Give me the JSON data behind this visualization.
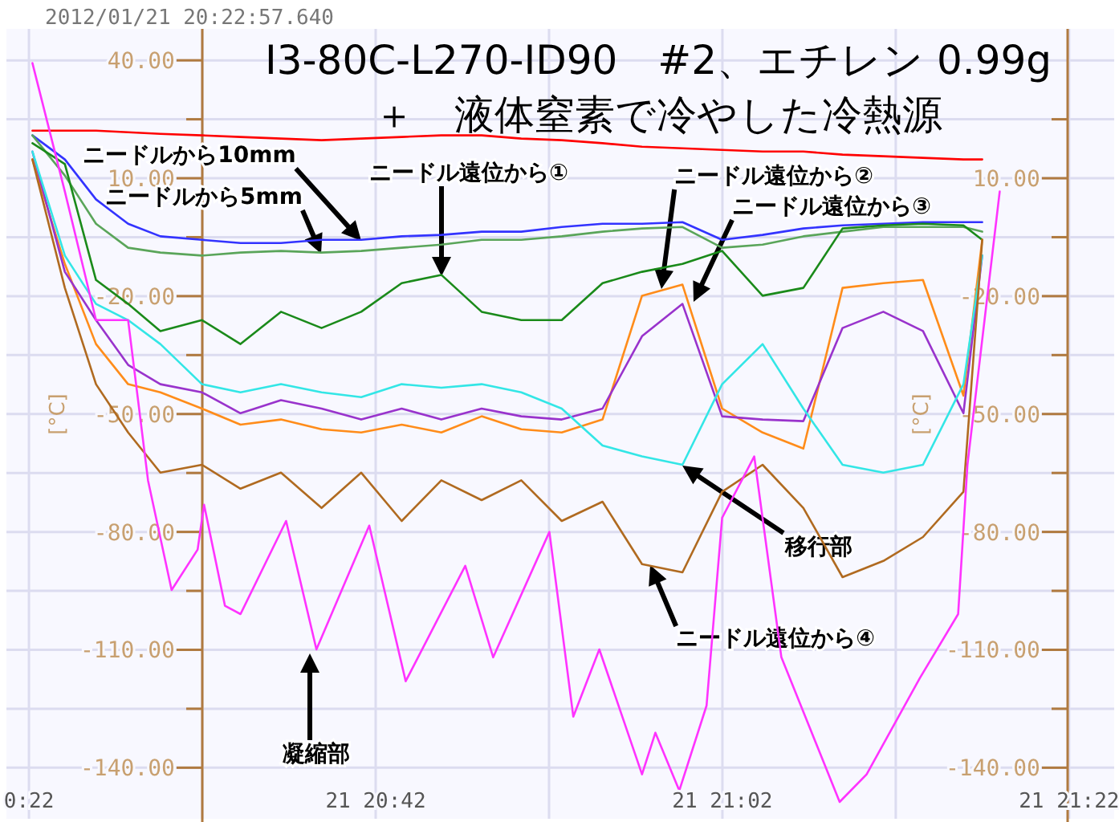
{
  "chart_data": {
    "type": "line",
    "title": "I3-80C-L270-ID90　#2、エチレン 0.99g",
    "subtitle": "＋　液体窒素で冷やした冷熱源",
    "ylabel": "[°C]",
    "y2label": "[°C]",
    "grid": true,
    "xlim": [
      "2012-01-21T20:20:42",
      "2012-01-21T21:24:36"
    ],
    "xticks": [
      {
        "value": "2012-01-21T20:22",
        "label": "0:22"
      },
      {
        "value": "2012-01-21T20:32",
        "label": null
      },
      {
        "value": "2012-01-21T20:42",
        "label": "21 20:42"
      },
      {
        "value": "2012-01-21T20:52",
        "label": null
      },
      {
        "value": "2012-01-21T21:02",
        "label": "21 21:02"
      },
      {
        "value": "2012-01-21T21:12",
        "label": null
      },
      {
        "value": "2012-01-21T21:22",
        "label": "21 21:22"
      }
    ],
    "ylim": [
      -153,
      48
    ],
    "yticks": [
      {
        "value": 40,
        "label": "40.00"
      },
      {
        "value": 25,
        "label": null
      },
      {
        "value": 10,
        "label": "10.00"
      },
      {
        "value": -5,
        "label": null
      },
      {
        "value": -20,
        "label": "-20.00"
      },
      {
        "value": -35,
        "label": null
      },
      {
        "value": -50,
        "label": "-50.00"
      },
      {
        "value": -65,
        "label": null
      },
      {
        "value": -80,
        "label": "-80.00"
      },
      {
        "value": -95,
        "label": null
      },
      {
        "value": -110,
        "label": "-110.00"
      },
      {
        "value": -125,
        "label": null
      },
      {
        "value": -140,
        "label": "-140.00"
      }
    ],
    "y2lim": [
      -153,
      48
    ],
    "y2ticks": [
      {
        "value": 25,
        "label": null
      },
      {
        "value": 10,
        "label": "10.00"
      },
      {
        "value": -5,
        "label": null
      },
      {
        "value": -20,
        "label": "-20.00"
      },
      {
        "value": -35,
        "label": null
      },
      {
        "value": -50,
        "label": "-50.00"
      },
      {
        "value": -65,
        "label": null
      },
      {
        "value": -80,
        "label": "-80.00"
      },
      {
        "value": -95,
        "label": null
      },
      {
        "value": -110,
        "label": "-110.00"
      },
      {
        "value": -125,
        "label": null
      },
      {
        "value": -140,
        "label": "-140.00"
      }
    ],
    "x": [
      "2012-01-21T20:22:12",
      "2012-01-21T20:24:04",
      "2012-01-21T20:25:52",
      "2012-01-21T20:27:43",
      "2012-01-21T20:29:35",
      "2012-01-21T20:31:59",
      "2012-01-21T20:34:12",
      "2012-01-21T20:36:32",
      "2012-01-21T20:38:53",
      "2012-01-21T20:41:10",
      "2012-01-21T20:43:30",
      "2012-01-21T20:45:47",
      "2012-01-21T20:48:07",
      "2012-01-21T20:50:24",
      "2012-01-21T20:52:44",
      "2012-01-21T20:55:05",
      "2012-01-21T20:57:22",
      "2012-01-21T20:59:42",
      "2012-01-21T21:01:59",
      "2012-01-21T21:04:19",
      "2012-01-21T21:06:40",
      "2012-01-21T21:08:56",
      "2012-01-21T21:11:17",
      "2012-01-21T21:13:34",
      "2012-01-21T21:15:54",
      "2012-01-21T21:16:59"
    ],
    "series": [
      {
        "color": "#ff0000",
        "values": [
          22.1,
          22.1,
          22.1,
          21.7,
          21.3,
          20.9,
          20.5,
          20.1,
          19.7,
          20.1,
          20.5,
          20.9,
          20.9,
          20.1,
          19.7,
          18.9,
          18.0,
          17.6,
          17.2,
          16.8,
          16.8,
          16.0,
          15.6,
          15.2,
          14.8,
          14.8
        ]
      },
      {
        "color": "#3333ff",
        "values": [
          20.9,
          14.8,
          4.6,
          -1.6,
          -4.8,
          -5.7,
          -6.5,
          -6.5,
          -5.7,
          -5.7,
          -4.8,
          -4.4,
          -3.6,
          -3.6,
          -2.4,
          -1.6,
          -1.6,
          -1.2,
          -5.7,
          -4.4,
          -2.8,
          -2.0,
          -1.6,
          -1.2,
          -1.2,
          -1.2
        ]
      },
      {
        "color": "#5aa55a",
        "values": [
          20.9,
          10.7,
          -1.6,
          -7.7,
          -8.9,
          -9.7,
          -8.9,
          -8.5,
          -8.9,
          -8.5,
          -7.7,
          -6.9,
          -5.7,
          -5.7,
          -4.8,
          -3.6,
          -2.8,
          -2.4,
          -7.7,
          -6.9,
          -4.8,
          -3.6,
          -2.4,
          -2.4,
          -2.4,
          -3.6
        ]
      },
      {
        "color": "#1a8a1a",
        "values": [
          18.9,
          13.6,
          -15.9,
          -22.0,
          -28.9,
          -26.1,
          -32.2,
          -24.0,
          -28.1,
          -24.0,
          -16.7,
          -14.6,
          -24.0,
          -26.1,
          -26.1,
          -16.7,
          -13.8,
          -11.8,
          -8.5,
          -19.9,
          -17.9,
          -2.8,
          -2.0,
          -1.6,
          -2.0,
          -5.7
        ]
      },
      {
        "color": "#ff8c1a",
        "values": [
          14.8,
          -11.8,
          -32.2,
          -42.4,
          -44.5,
          -48.6,
          -52.7,
          -51.4,
          -53.9,
          -54.7,
          -52.7,
          -54.7,
          -50.6,
          -53.9,
          -54.7,
          -51.4,
          -19.9,
          -17.1,
          -48.6,
          -54.7,
          -58.8,
          -17.9,
          -16.7,
          -15.9,
          -45.3,
          -5.7
        ]
      },
      {
        "color": "#9933cc",
        "values": [
          16.8,
          -13.8,
          -26.1,
          -37.5,
          -42.4,
          -44.5,
          -49.8,
          -46.5,
          -48.6,
          -51.4,
          -48.6,
          -51.4,
          -48.6,
          -50.6,
          -51.4,
          -48.6,
          -30.2,
          -22.0,
          -50.6,
          -51.4,
          -51.8,
          -28.1,
          -24.0,
          -28.9,
          -49.8,
          -9.7
        ]
      },
      {
        "color": "#33e6e6",
        "values": [
          16.8,
          -9.7,
          -22.0,
          -26.1,
          -32.2,
          -42.4,
          -44.5,
          -42.4,
          -44.5,
          -45.7,
          -42.4,
          -43.3,
          -42.4,
          -44.5,
          -48.6,
          -58.0,
          -60.8,
          -62.9,
          -42.4,
          -32.2,
          -48.6,
          -62.9,
          -64.9,
          -62.9,
          -42.4,
          -9.7
        ]
      },
      {
        "color": "#b06a20",
        "values": [
          14.8,
          -17.9,
          -42.4,
          -54.7,
          -64.9,
          -62.9,
          -69.0,
          -64.9,
          -73.9,
          -64.9,
          -77.2,
          -66.9,
          -71.9,
          -66.9,
          -77.2,
          -72.3,
          -88.2,
          -90.3,
          -69.8,
          -62.9,
          -73.9,
          -91.5,
          -87.4,
          -81.3,
          -69.8,
          -5.7
        ]
      },
      {
        "color": "#ff33ff",
        "x": [
          "2012-01-21T20:22:12",
          "2012-01-21T20:24:04",
          "2012-01-21T20:25:52",
          "2012-01-21T20:27:43",
          "2012-01-21T20:28:52",
          "2012-01-21T20:30:14",
          "2012-01-21T20:31:44",
          "2012-01-21T20:32:06",
          "2012-01-21T20:33:18",
          "2012-01-21T20:34:12",
          "2012-01-21T20:36:50",
          "2012-01-21T20:38:35",
          "2012-01-21T20:41:38",
          "2012-01-21T20:43:44",
          "2012-01-21T20:47:10",
          "2012-01-21T20:48:47",
          "2012-01-21T20:52:01",
          "2012-01-21T20:53:24",
          "2012-01-21T20:54:54",
          "2012-01-21T20:57:22",
          "2012-01-21T20:58:08",
          "2012-01-21T20:59:31",
          "2012-01-21T21:01:05",
          "2012-01-21T21:01:59",
          "2012-01-21T21:03:50",
          "2012-01-21T21:05:24",
          "2012-01-21T21:08:46",
          "2012-01-21T21:10:19",
          "2012-01-21T21:13:23",
          "2012-01-21T21:15:36",
          "2012-01-21T21:16:08",
          "2012-01-21T21:18:00"
        ],
        "values": [
          39.3,
          6.6,
          -26.1,
          -26.1,
          -66.9,
          -94.8,
          -84.5,
          -73.1,
          -98.8,
          -100.9,
          -77.2,
          -109.9,
          -78.4,
          -118.0,
          -88.6,
          -111.9,
          -80.0,
          -127.0,
          -109.9,
          -141.7,
          -131.1,
          -145.8,
          -124.2,
          -76.4,
          -60.8,
          -111.9,
          -148.7,
          -141.7,
          -117.2,
          -100.9,
          -62.9,
          6.6
        ]
      }
    ],
    "annotations": [
      "2012/01/21 20:22:57.640",
      "ニードルから10mm",
      "ニードルから5mm",
      "ニードル遠位から①",
      "ニードル遠位から②",
      "ニードル遠位から③",
      "移行部",
      "ニードル遠位から④",
      "凝縮部"
    ]
  }
}
